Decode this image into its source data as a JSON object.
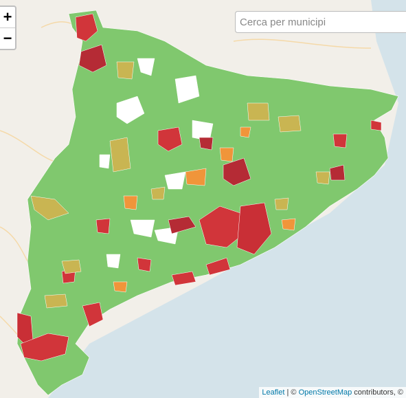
{
  "zoom_control": {
    "zoom_in": "+",
    "zoom_out": "−"
  },
  "search": {
    "placeholder": "Cerca per municipi"
  },
  "attribution": {
    "leaflet": "Leaflet",
    "separator": "| ©",
    "osm": "OpenStreetMap",
    "suffix": "contributors, ©"
  }
}
